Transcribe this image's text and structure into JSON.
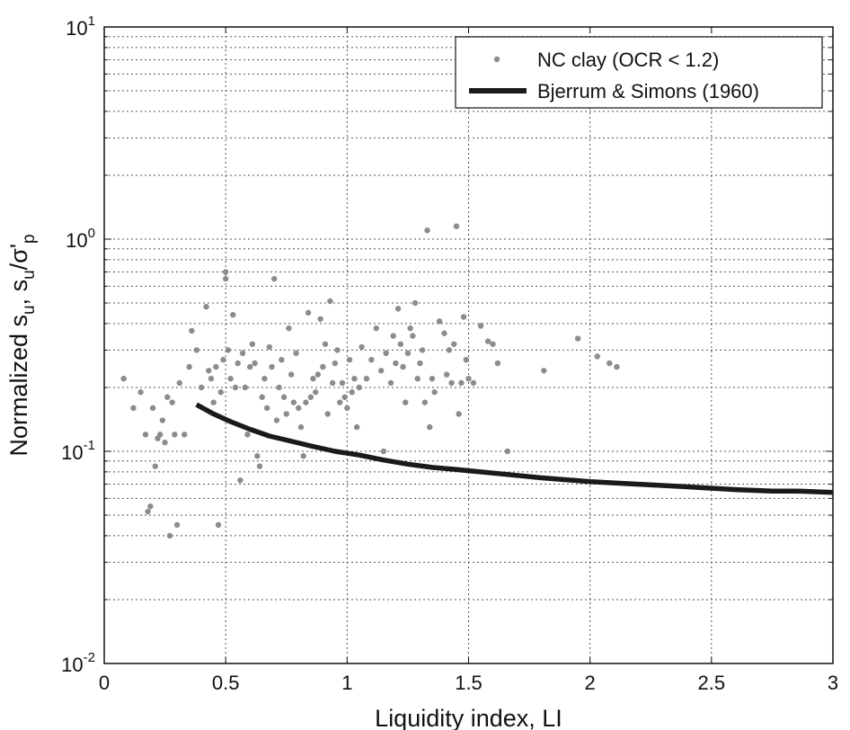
{
  "chart_data": {
    "type": "scatter",
    "xlabel": "Liquidity index, LI",
    "ylabel": {
      "base": "Normalized s",
      "sub1": "u",
      "mid": ", s",
      "sub2": "u",
      "slash": "/σ'",
      "sub3": "p"
    },
    "xlim": [
      0,
      3
    ],
    "ylim": [
      0.01,
      10
    ],
    "y_scale": "log",
    "grid": true,
    "legend_position": "top-right",
    "x_ticks": [
      "0",
      "0.5",
      "1",
      "1.5",
      "2",
      "2.5",
      "3"
    ],
    "x_tick_values": [
      0,
      0.5,
      1,
      1.5,
      2,
      2.5,
      3
    ],
    "y_ticks": [
      {
        "value": 0.01,
        "base": "10",
        "exp": "-2"
      },
      {
        "value": 0.1,
        "base": "10",
        "exp": "-1"
      },
      {
        "value": 1,
        "base": "10",
        "exp": "0"
      },
      {
        "value": 10,
        "base": "10",
        "exp": "1"
      }
    ],
    "colors": {
      "scatter": "#8c8c8c",
      "line": "#1a1a1a",
      "grid": "#555555"
    },
    "series": [
      {
        "name": "NC clay (OCR < 1.2)",
        "kind": "scatter",
        "points": [
          [
            0.08,
            0.22
          ],
          [
            0.12,
            0.16
          ],
          [
            0.15,
            0.19
          ],
          [
            0.17,
            0.12
          ],
          [
            0.18,
            0.052
          ],
          [
            0.19,
            0.055
          ],
          [
            0.2,
            0.16
          ],
          [
            0.21,
            0.085
          ],
          [
            0.22,
            0.115
          ],
          [
            0.23,
            0.12
          ],
          [
            0.24,
            0.14
          ],
          [
            0.25,
            0.11
          ],
          [
            0.26,
            0.18
          ],
          [
            0.27,
            0.04
          ],
          [
            0.28,
            0.17
          ],
          [
            0.29,
            0.12
          ],
          [
            0.3,
            0.045
          ],
          [
            0.31,
            0.21
          ],
          [
            0.33,
            0.12
          ],
          [
            0.35,
            0.25
          ],
          [
            0.36,
            0.37
          ],
          [
            0.38,
            0.3
          ],
          [
            0.4,
            0.2
          ],
          [
            0.42,
            0.48
          ],
          [
            0.43,
            0.24
          ],
          [
            0.44,
            0.22
          ],
          [
            0.45,
            0.17
          ],
          [
            0.46,
            0.25
          ],
          [
            0.47,
            0.045
          ],
          [
            0.48,
            0.19
          ],
          [
            0.49,
            0.27
          ],
          [
            0.5,
            0.65
          ],
          [
            0.5,
            0.7
          ],
          [
            0.51,
            0.3
          ],
          [
            0.52,
            0.22
          ],
          [
            0.53,
            0.44
          ],
          [
            0.54,
            0.2
          ],
          [
            0.55,
            0.26
          ],
          [
            0.56,
            0.073
          ],
          [
            0.57,
            0.29
          ],
          [
            0.58,
            0.2
          ],
          [
            0.59,
            0.12
          ],
          [
            0.6,
            0.25
          ],
          [
            0.61,
            0.32
          ],
          [
            0.62,
            0.26
          ],
          [
            0.63,
            0.095
          ],
          [
            0.64,
            0.085
          ],
          [
            0.65,
            0.18
          ],
          [
            0.66,
            0.22
          ],
          [
            0.67,
            0.16
          ],
          [
            0.68,
            0.31
          ],
          [
            0.69,
            0.25
          ],
          [
            0.7,
            0.65
          ],
          [
            0.71,
            0.14
          ],
          [
            0.72,
            0.2
          ],
          [
            0.73,
            0.27
          ],
          [
            0.74,
            0.18
          ],
          [
            0.75,
            0.15
          ],
          [
            0.76,
            0.38
          ],
          [
            0.77,
            0.23
          ],
          [
            0.78,
            0.17
          ],
          [
            0.79,
            0.29
          ],
          [
            0.8,
            0.16
          ],
          [
            0.81,
            0.13
          ],
          [
            0.82,
            0.095
          ],
          [
            0.83,
            0.17
          ],
          [
            0.84,
            0.45
          ],
          [
            0.85,
            0.18
          ],
          [
            0.86,
            0.22
          ],
          [
            0.87,
            0.19
          ],
          [
            0.88,
            0.23
          ],
          [
            0.89,
            0.42
          ],
          [
            0.9,
            0.25
          ],
          [
            0.91,
            0.32
          ],
          [
            0.92,
            0.15
          ],
          [
            0.93,
            0.51
          ],
          [
            0.94,
            0.21
          ],
          [
            0.95,
            0.26
          ],
          [
            0.96,
            0.3
          ],
          [
            0.97,
            0.17
          ],
          [
            0.98,
            0.21
          ],
          [
            0.99,
            0.18
          ],
          [
            1.0,
            0.16
          ],
          [
            1.01,
            0.27
          ],
          [
            1.02,
            0.19
          ],
          [
            1.03,
            0.22
          ],
          [
            1.04,
            0.13
          ],
          [
            1.05,
            0.2
          ],
          [
            1.06,
            0.31
          ],
          [
            1.08,
            0.22
          ],
          [
            1.1,
            0.27
          ],
          [
            1.12,
            0.38
          ],
          [
            1.14,
            0.24
          ],
          [
            1.15,
            0.1
          ],
          [
            1.16,
            0.29
          ],
          [
            1.18,
            0.21
          ],
          [
            1.19,
            0.35
          ],
          [
            1.2,
            0.26
          ],
          [
            1.21,
            0.47
          ],
          [
            1.22,
            0.32
          ],
          [
            1.23,
            0.25
          ],
          [
            1.24,
            0.17
          ],
          [
            1.25,
            0.29
          ],
          [
            1.26,
            0.38
          ],
          [
            1.27,
            0.35
          ],
          [
            1.28,
            0.5
          ],
          [
            1.29,
            0.22
          ],
          [
            1.3,
            0.26
          ],
          [
            1.31,
            0.3
          ],
          [
            1.32,
            0.17
          ],
          [
            1.33,
            1.1
          ],
          [
            1.34,
            0.13
          ],
          [
            1.35,
            0.22
          ],
          [
            1.36,
            0.19
          ],
          [
            1.38,
            0.41
          ],
          [
            1.4,
            0.36
          ],
          [
            1.41,
            0.23
          ],
          [
            1.42,
            0.3
          ],
          [
            1.43,
            0.21
          ],
          [
            1.44,
            0.32
          ],
          [
            1.45,
            1.15
          ],
          [
            1.46,
            0.15
          ],
          [
            1.47,
            0.21
          ],
          [
            1.48,
            0.43
          ],
          [
            1.49,
            0.27
          ],
          [
            1.5,
            0.22
          ],
          [
            1.52,
            0.21
          ],
          [
            1.55,
            0.39
          ],
          [
            1.58,
            0.33
          ],
          [
            1.6,
            0.32
          ],
          [
            1.62,
            0.26
          ],
          [
            1.66,
            0.1
          ],
          [
            1.81,
            0.24
          ],
          [
            1.95,
            0.34
          ],
          [
            2.03,
            0.28
          ],
          [
            2.08,
            0.26
          ],
          [
            2.11,
            0.25
          ]
        ]
      },
      {
        "name": "Bjerrum & Simons (1960)",
        "kind": "line",
        "points": [
          [
            0.38,
            0.166
          ],
          [
            0.45,
            0.15
          ],
          [
            0.52,
            0.138
          ],
          [
            0.6,
            0.127
          ],
          [
            0.68,
            0.118
          ],
          [
            0.75,
            0.113
          ],
          [
            0.85,
            0.106
          ],
          [
            0.95,
            0.1
          ],
          [
            1.05,
            0.096
          ],
          [
            1.15,
            0.091
          ],
          [
            1.25,
            0.087
          ],
          [
            1.35,
            0.084
          ],
          [
            1.45,
            0.082
          ],
          [
            1.6,
            0.079
          ],
          [
            1.8,
            0.075
          ],
          [
            2.0,
            0.072
          ],
          [
            2.2,
            0.07
          ],
          [
            2.4,
            0.068
          ],
          [
            2.6,
            0.066
          ],
          [
            2.75,
            0.065
          ],
          [
            2.85,
            0.065
          ],
          [
            3.0,
            0.064
          ]
        ]
      }
    ]
  }
}
